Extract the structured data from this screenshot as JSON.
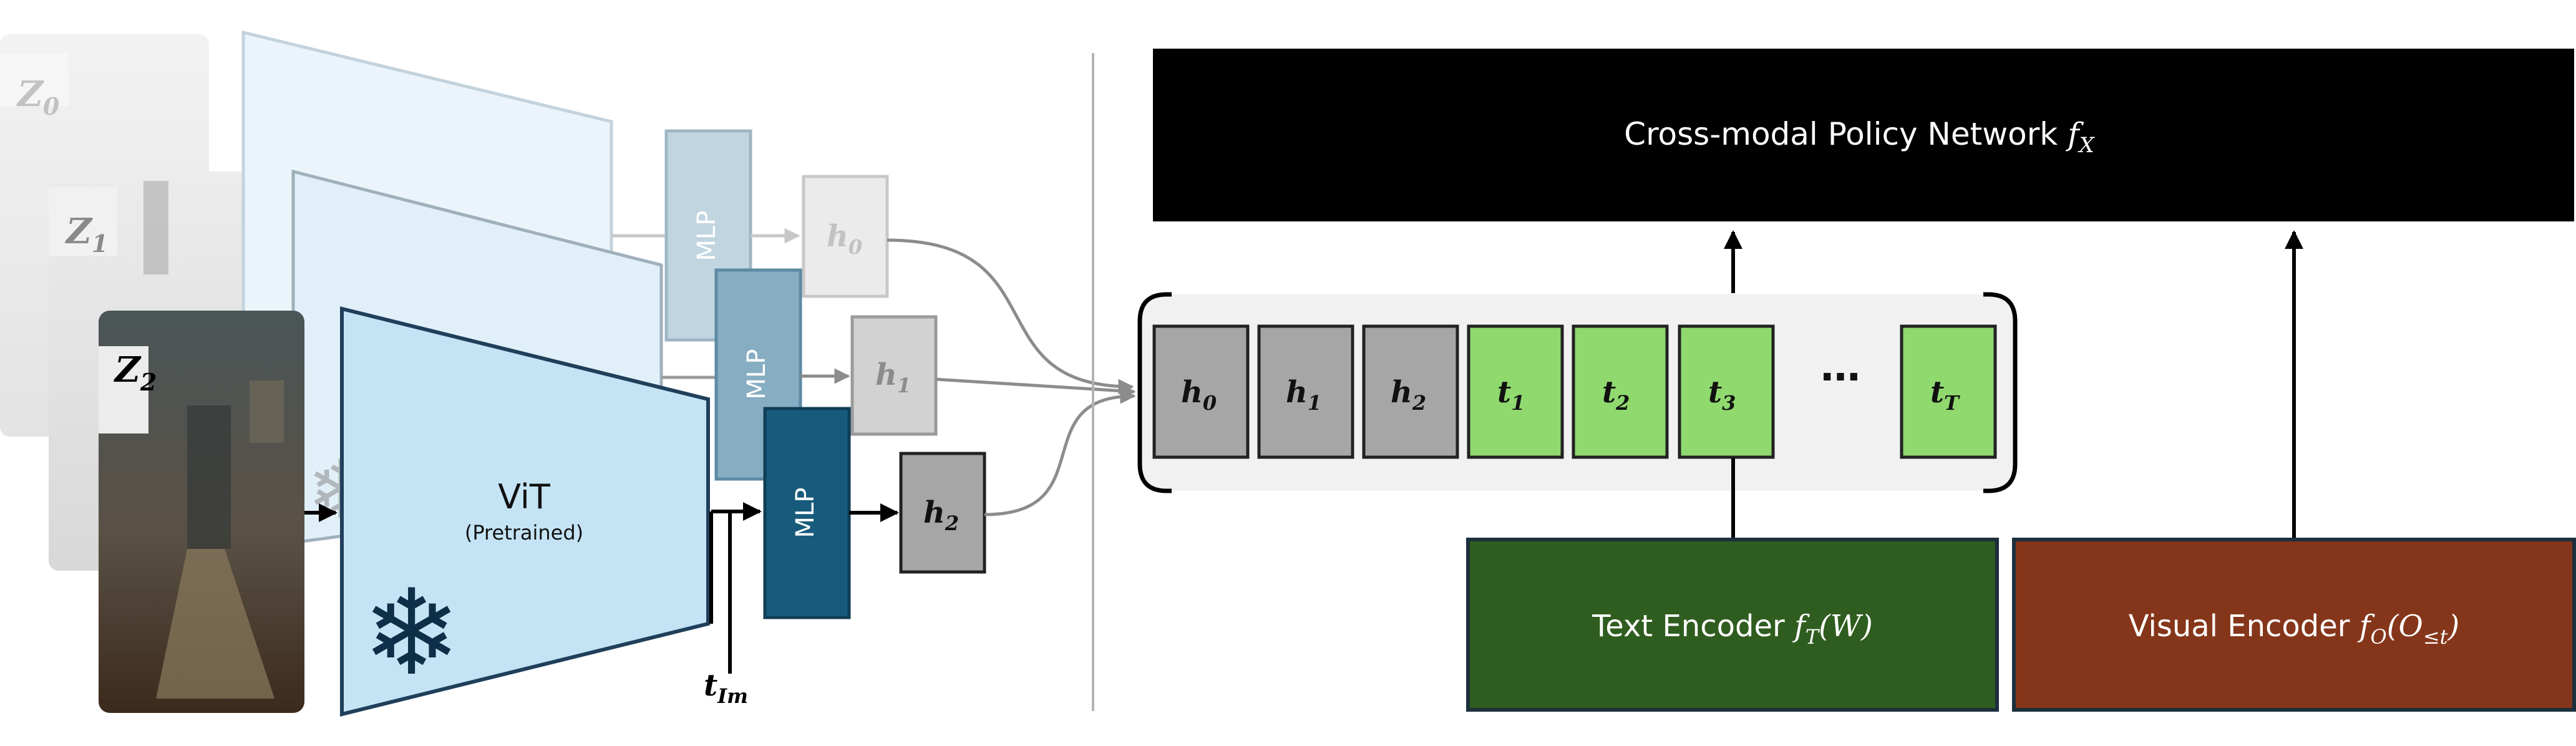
{
  "policy": {
    "label": "Cross-modal Policy Network ",
    "func": "f",
    "sub": "X"
  },
  "vit": {
    "label": "ViT",
    "sublabel": "(Pretrained)"
  },
  "frames": [
    {
      "letter": "Z",
      "sub": "0"
    },
    {
      "letter": "Z",
      "sub": "1"
    },
    {
      "letter": "Z",
      "sub": "2"
    }
  ],
  "mlp_label": "MLP",
  "hidden": [
    {
      "letter": "h",
      "sub": "0"
    },
    {
      "letter": "h",
      "sub": "1"
    },
    {
      "letter": "h",
      "sub": "2"
    }
  ],
  "t_im": {
    "letter": "t",
    "sub": "Im"
  },
  "sequence": {
    "h_tokens": [
      {
        "letter": "h",
        "sub": "0"
      },
      {
        "letter": "h",
        "sub": "1"
      },
      {
        "letter": "h",
        "sub": "2"
      }
    ],
    "t_tokens": [
      {
        "letter": "t",
        "sub": "1"
      },
      {
        "letter": "t",
        "sub": "2"
      },
      {
        "letter": "t",
        "sub": "3"
      }
    ],
    "ellipsis": "…",
    "t_last": {
      "letter": "t",
      "sub": "T"
    }
  },
  "text_encoder": {
    "label": "Text Encoder ",
    "func": "f",
    "sub": "T",
    "arg": "(W)"
  },
  "visual_encoder": {
    "label": "Visual Encoder ",
    "func": "f",
    "sub": "O",
    "arg_pre": "(O",
    "arg_sub": "≤t",
    "arg_post": ")"
  },
  "colors": {
    "policy_bg": "#000000",
    "vit_fill": "#c4e4f5",
    "vit_stroke": "#1f3f5a",
    "mlp_dark": "#175a7c",
    "mlp_mid": "#86adc2",
    "mlp_light": "#c0d5e0",
    "hidden_gray": "#a6a6a6",
    "token_green": "#8fd96e",
    "text_encoder": "#2f5d1f",
    "visual_encoder": "#85361a",
    "sequence_bg": "#f1f1f1"
  },
  "icons": [
    "snowflake-icon"
  ]
}
